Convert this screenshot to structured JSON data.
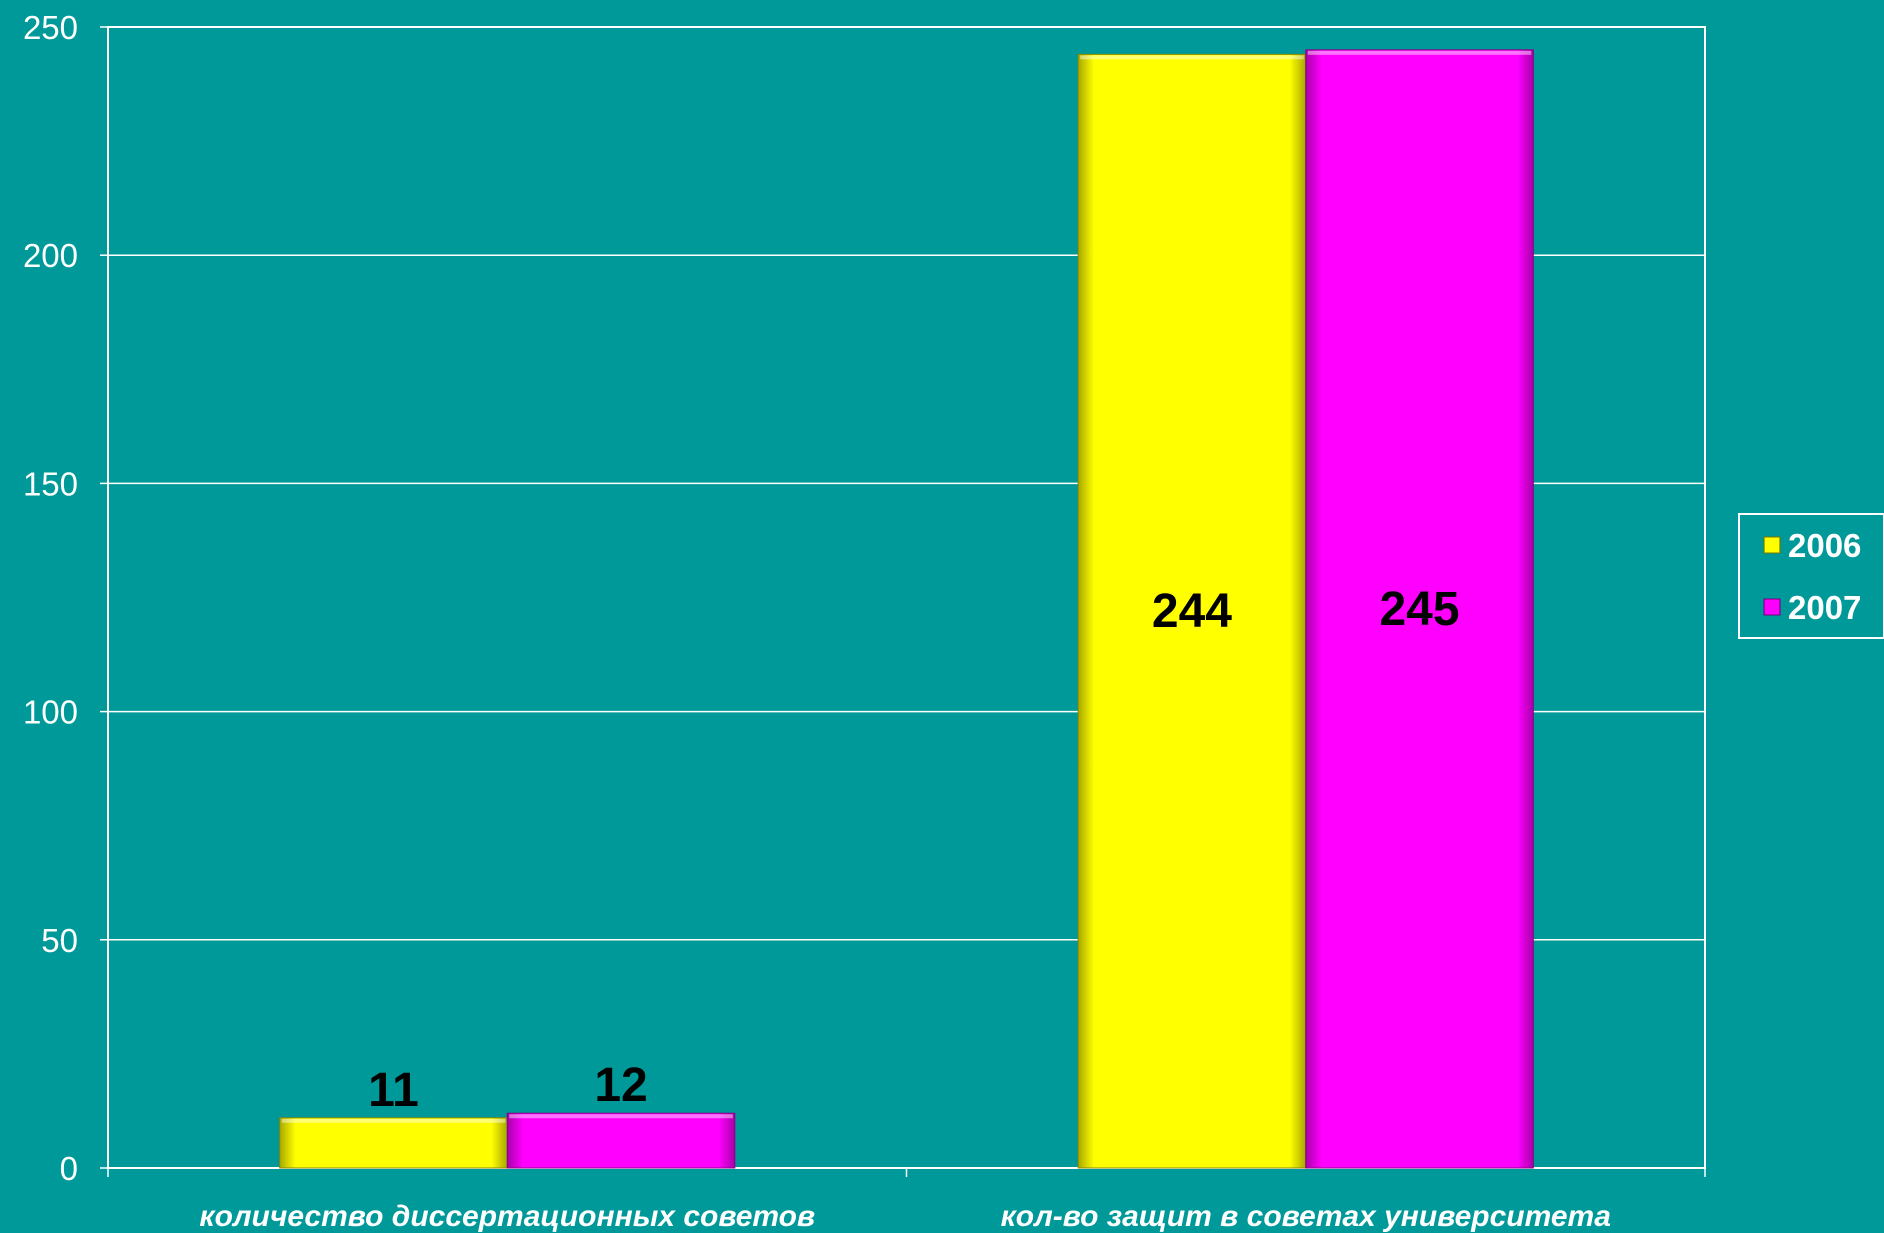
{
  "colors": {
    "background": "#009999",
    "grid": "#ffffff",
    "series_2006": "#ffff00",
    "series_2007": "#ff00ff"
  },
  "chart_data": {
    "type": "bar",
    "categories": [
      "количество диссертационных советов",
      "кол-во защит в советах университета"
    ],
    "series": [
      {
        "name": "2006",
        "values": [
          11,
          244
        ]
      },
      {
        "name": "2007",
        "values": [
          12,
          245
        ]
      }
    ],
    "ylim": [
      0,
      250
    ],
    "yticks": [
      "0",
      "50",
      "100",
      "150",
      "200",
      "250"
    ],
    "grid": true,
    "legend": "right",
    "value_labels": [
      [
        "11",
        "244"
      ],
      [
        "12",
        "245"
      ]
    ]
  }
}
